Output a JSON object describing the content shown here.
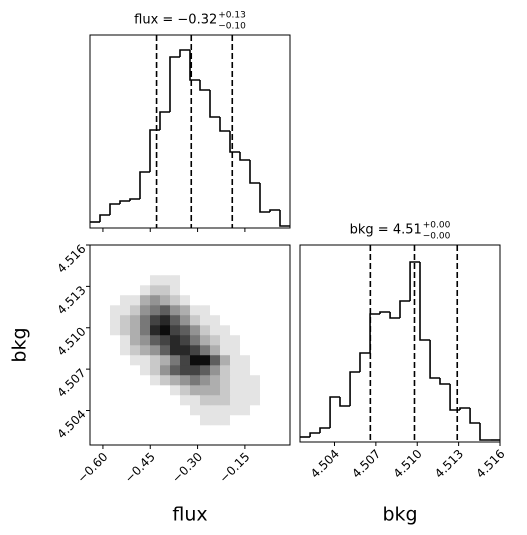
{
  "chart_data": [
    {
      "type": "histogram",
      "title": {
        "text": "flux = −0.32",
        "upper": "+0.13",
        "lower": "−0.10"
      },
      "bins": [
        -0.641,
        -0.6093,
        -0.5776,
        -0.5459,
        -0.5142,
        -0.4825,
        -0.4508,
        -0.4191,
        -0.3874,
        -0.3557,
        -0.324,
        -0.2923,
        -0.2606,
        -0.2289,
        -0.1972,
        -0.1655,
        -0.1338,
        -0.1021,
        -0.0704,
        -0.0387,
        -0.007
      ],
      "counts": [
        6,
        13,
        24,
        27,
        29,
        56,
        98,
        116,
        171,
        178,
        148,
        138,
        111,
        97,
        76,
        68,
        45,
        16,
        18,
        2
      ],
      "quantiles": [
        -0.43,
        -0.32,
        -0.19
      ],
      "xlim": [
        -0.641,
        -0.007
      ],
      "ylim": [
        0,
        193
      ],
      "color": "#000000"
    },
    {
      "type": "histogram",
      "title": {
        "text": "bkg = 4.51",
        "upper": "+0.00",
        "lower": "−0.00"
      },
      "xlabel": "bkg",
      "bins": [
        4.5015,
        4.50223,
        4.50295,
        4.50368,
        4.5044,
        4.50513,
        4.50585,
        4.50658,
        4.5073,
        4.50803,
        4.50875,
        4.50948,
        4.5102,
        4.51093,
        4.51165,
        4.51238,
        4.5131,
        4.51383,
        4.51455,
        4.51528,
        4.516
      ],
      "counts": [
        5,
        9,
        14,
        45,
        36,
        70,
        89,
        128,
        130,
        124,
        141,
        180,
        102,
        64,
        58,
        32,
        34,
        19,
        2,
        2
      ],
      "quantiles": [
        4.5066,
        4.5098,
        4.5129
      ],
      "xlim": [
        4.5015,
        4.516
      ],
      "ylim": [
        0,
        197
      ],
      "color": "#000000",
      "xticks": [
        4.504,
        4.507,
        {
          "value": 4.51,
          "label": "4.510"
        },
        4.513,
        4.516
      ]
    },
    {
      "type": "hist2d",
      "xlabel": "flux",
      "ylabel": "bkg",
      "xlim": [
        -0.641,
        -0.007
      ],
      "ylim": [
        4.5015,
        4.516
      ],
      "xticks": [
        {
          "value": -0.6,
          "label": "−0.60"
        },
        {
          "value": -0.45,
          "label": "−0.45"
        },
        {
          "value": -0.3,
          "label": "−0.30"
        },
        {
          "value": -0.15,
          "label": "−0.15"
        }
      ],
      "yticks": [
        4.504,
        4.507,
        {
          "value": 4.51,
          "label": "4.510"
        },
        4.513,
        4.516
      ],
      "xbins": [
        -0.641,
        -0.6093,
        -0.5776,
        -0.5459,
        -0.5142,
        -0.4825,
        -0.4508,
        -0.4191,
        -0.3874,
        -0.3557,
        -0.324,
        -0.2923,
        -0.2606,
        -0.2289,
        -0.1972,
        -0.1655,
        -0.1338,
        -0.1021,
        -0.0704,
        -0.0387,
        -0.007
      ],
      "ybins": [
        4.5015,
        4.50223,
        4.50295,
        4.50368,
        4.5044,
        4.50513,
        4.50585,
        4.50658,
        4.5073,
        4.50803,
        4.50875,
        4.50948,
        4.5102,
        4.51093,
        4.51165,
        4.51238,
        4.5131,
        4.51383,
        4.51455,
        4.51528,
        4.516
      ],
      "z": [
        [
          0,
          0,
          0,
          0,
          0,
          0,
          0,
          0,
          0,
          0,
          0,
          0,
          0,
          0,
          0,
          0,
          0,
          0,
          0,
          0
        ],
        [
          0,
          0,
          0,
          0,
          0,
          0,
          0,
          0,
          0,
          0,
          0,
          0,
          0,
          0,
          0,
          0,
          0,
          0,
          0,
          0
        ],
        [
          0,
          0,
          0,
          0,
          0,
          0,
          0,
          0,
          0,
          0,
          0,
          1,
          1,
          1,
          0,
          0,
          0,
          0,
          0,
          0
        ],
        [
          0,
          0,
          0,
          0,
          0,
          0,
          0,
          0,
          0,
          0,
          1,
          1,
          1,
          1,
          1,
          1,
          0,
          0,
          0,
          0
        ],
        [
          0,
          0,
          0,
          0,
          0,
          0,
          0,
          0,
          0,
          1,
          1,
          2,
          2,
          2,
          1,
          1,
          1,
          0,
          0,
          0
        ],
        [
          0,
          0,
          0,
          0,
          0,
          0,
          0,
          0,
          1,
          2,
          3,
          3,
          3,
          2,
          1,
          1,
          1,
          0,
          0,
          0
        ],
        [
          0,
          0,
          0,
          0,
          0,
          0,
          1,
          2,
          3,
          4,
          5,
          4,
          3,
          2,
          1,
          1,
          1,
          0,
          0,
          0
        ],
        [
          0,
          0,
          0,
          0,
          0,
          1,
          2,
          4,
          6,
          7,
          7,
          6,
          4,
          2,
          1,
          1,
          0,
          0,
          0,
          0
        ],
        [
          0,
          0,
          0,
          0,
          1,
          1,
          2,
          3,
          5,
          7,
          9,
          9,
          6,
          3,
          1,
          1,
          0,
          0,
          0,
          0
        ],
        [
          0,
          0,
          0,
          1,
          2,
          3,
          4,
          6,
          8,
          8,
          7,
          5,
          3,
          1,
          1,
          0,
          0,
          0,
          0,
          0
        ],
        [
          0,
          0,
          0,
          1,
          3,
          4,
          6,
          7,
          8,
          7,
          5,
          3,
          2,
          1,
          1,
          0,
          0,
          0,
          0,
          0
        ],
        [
          0,
          0,
          1,
          2,
          3,
          5,
          8,
          9,
          7,
          6,
          4,
          2,
          1,
          1,
          0,
          0,
          0,
          0,
          0,
          0
        ],
        [
          0,
          0,
          1,
          2,
          3,
          5,
          7,
          8,
          6,
          4,
          2,
          1,
          1,
          0,
          0,
          0,
          0,
          0,
          0,
          0
        ],
        [
          0,
          0,
          1,
          1,
          2,
          4,
          5,
          6,
          4,
          3,
          1,
          1,
          0,
          0,
          0,
          0,
          0,
          0,
          0,
          0
        ],
        [
          0,
          0,
          0,
          1,
          1,
          3,
          4,
          3,
          2,
          1,
          0,
          0,
          0,
          0,
          0,
          0,
          0,
          0,
          0,
          0
        ],
        [
          0,
          0,
          0,
          0,
          0,
          1,
          2,
          2,
          1,
          0,
          0,
          0,
          0,
          0,
          0,
          0,
          0,
          0,
          0,
          0
        ],
        [
          0,
          0,
          0,
          0,
          0,
          0,
          1,
          1,
          1,
          0,
          0,
          0,
          0,
          0,
          0,
          0,
          0,
          0,
          0,
          0
        ],
        [
          0,
          0,
          0,
          0,
          0,
          0,
          0,
          0,
          0,
          0,
          0,
          0,
          0,
          0,
          0,
          0,
          0,
          0,
          0,
          0
        ],
        [
          0,
          0,
          0,
          0,
          0,
          0,
          0,
          0,
          0,
          0,
          0,
          0,
          0,
          0,
          0,
          0,
          0,
          0,
          0,
          0
        ],
        [
          0,
          0,
          0,
          0,
          0,
          0,
          0,
          0,
          0,
          0,
          0,
          0,
          0,
          0,
          0,
          0,
          0,
          0,
          0,
          0
        ]
      ]
    }
  ]
}
